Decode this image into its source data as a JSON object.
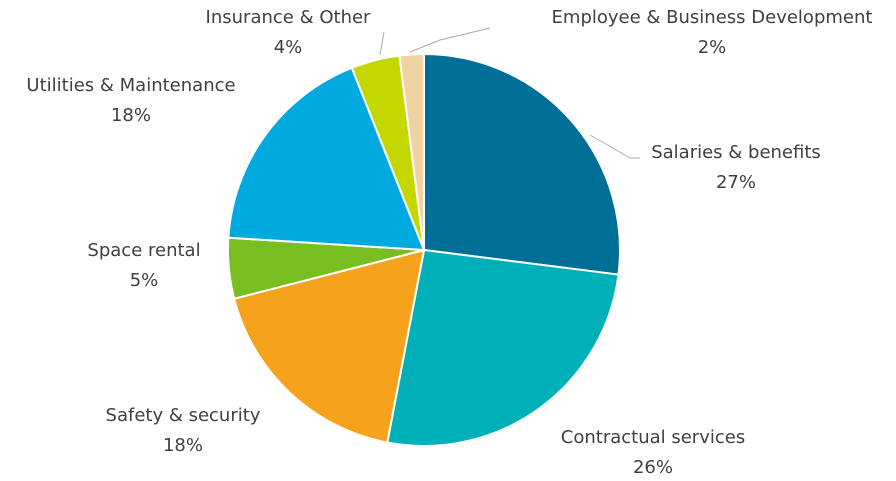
{
  "chart_data": {
    "type": "pie",
    "categories": [
      "Salaries & benefits",
      "Contractual services",
      "Safety & security",
      "Space rental",
      "Utilities & Maintenance",
      "Insurance & Other",
      "Employee & Business Development"
    ],
    "values": [
      27,
      26,
      18,
      5,
      18,
      4,
      2
    ],
    "value_labels": [
      "27%",
      "26%",
      "18%",
      "5%",
      "18%",
      "4%",
      "2%"
    ],
    "colors": [
      "#006f97",
      "#00b0b9",
      "#f7a21d",
      "#78be21",
      "#00a9e0",
      "#c5d700",
      "#f0d2a3"
    ]
  }
}
